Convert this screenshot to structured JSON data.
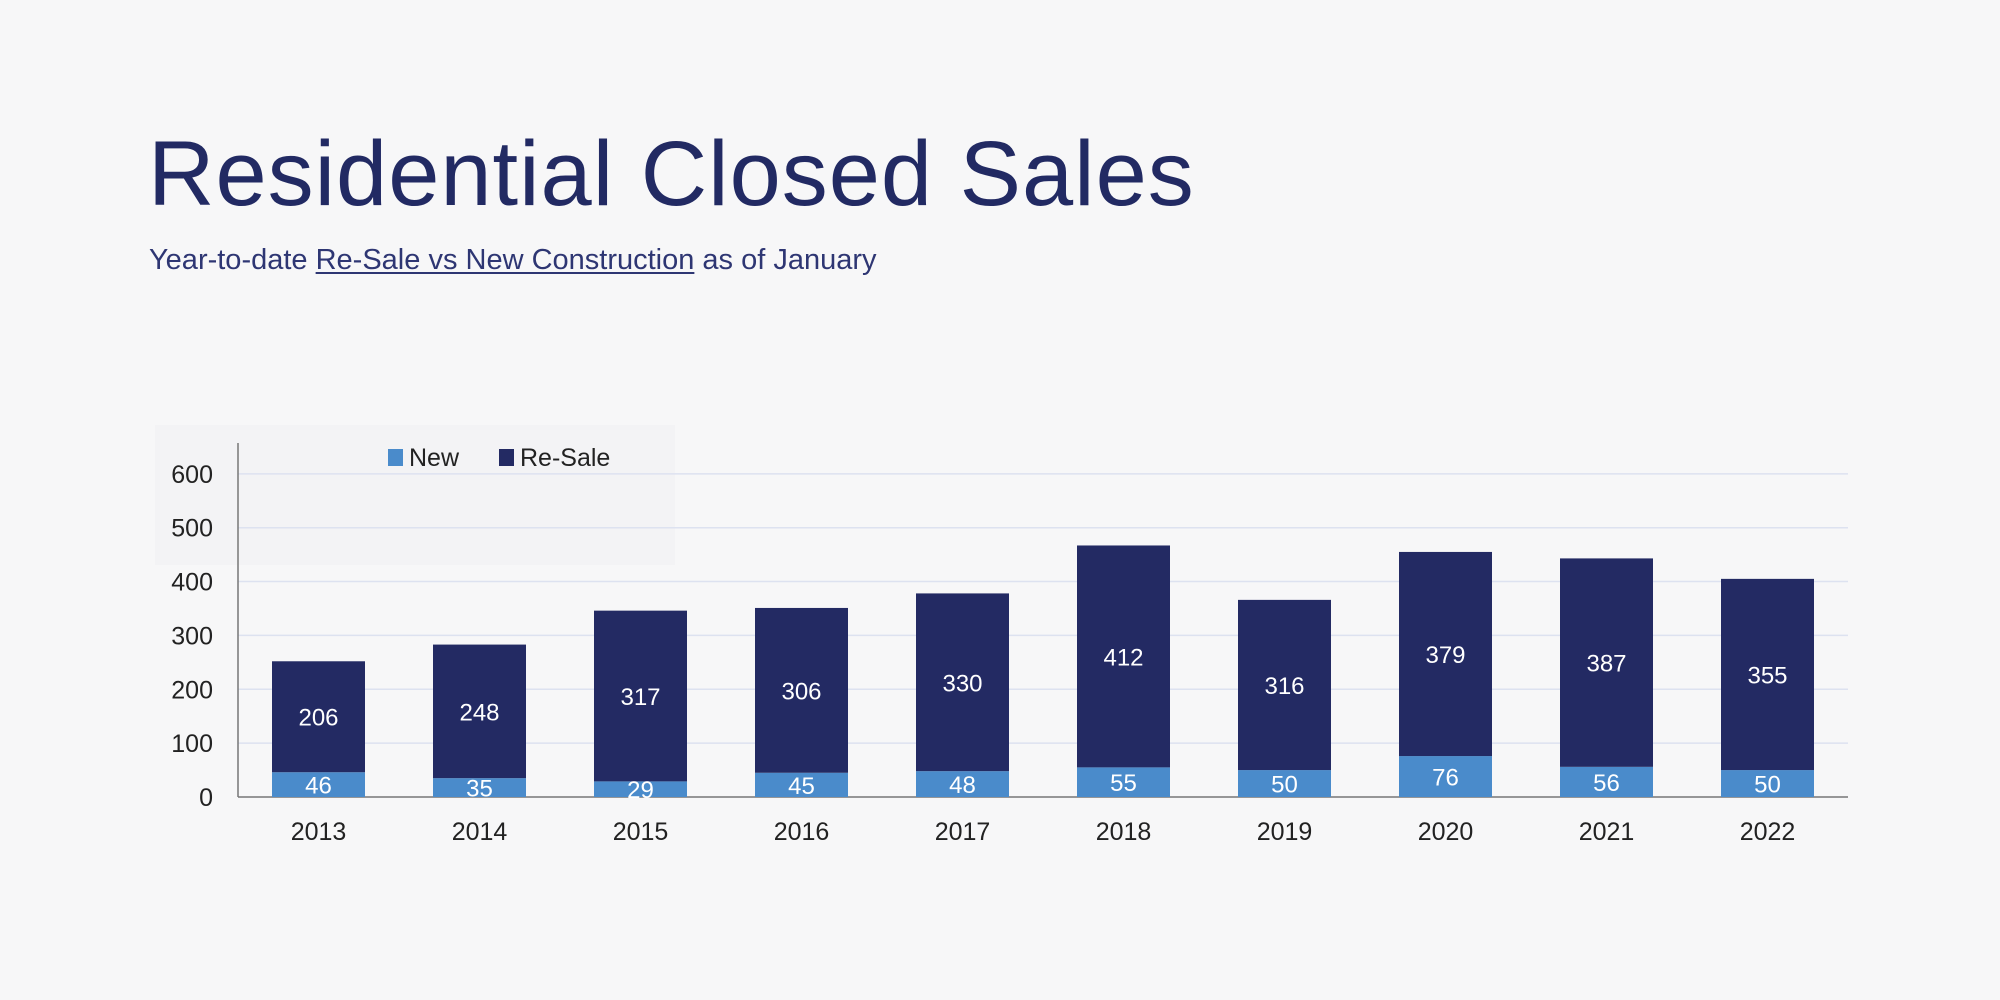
{
  "header": {
    "title": "Residential Closed Sales",
    "subtitle_pre": "Year-to-date ",
    "subtitle_link": "Re-Sale vs New Construction",
    "subtitle_post": " as of January"
  },
  "colors": {
    "new": "#4a8bcb",
    "resale": "#232a63",
    "gridline": "#dde2f0",
    "axis": "#777777"
  },
  "chart_data": {
    "type": "bar",
    "stacked": true,
    "categories": [
      "2013",
      "2014",
      "2015",
      "2016",
      "2017",
      "2018",
      "2019",
      "2020",
      "2021",
      "2022"
    ],
    "series": [
      {
        "name": "New",
        "values": [
          46,
          35,
          29,
          45,
          48,
          55,
          50,
          76,
          56,
          50
        ]
      },
      {
        "name": "Re-Sale",
        "values": [
          206,
          248,
          317,
          306,
          330,
          412,
          316,
          379,
          387,
          355
        ]
      }
    ],
    "yticks": [
      0,
      100,
      200,
      300,
      400,
      500,
      600
    ],
    "ylim": [
      0,
      650
    ],
    "grid": true,
    "legend_position": "top-left"
  }
}
